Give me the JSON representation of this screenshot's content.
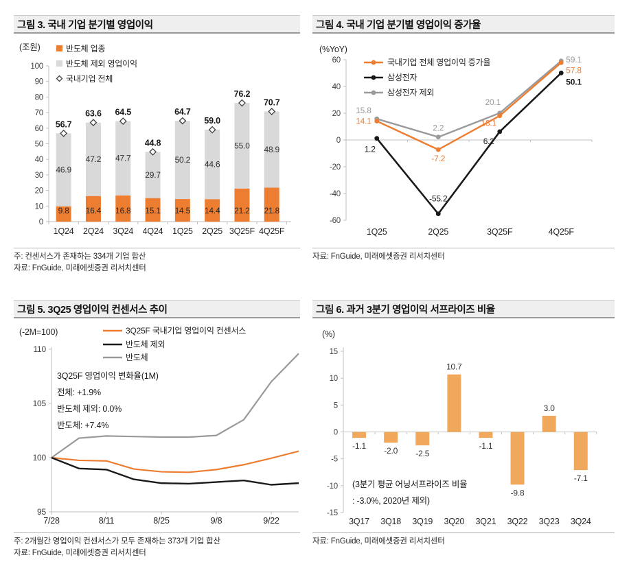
{
  "colors": {
    "orange": "#ED7D31",
    "light_orange": "#F0A95C",
    "gray_bar": "#D9D9D9",
    "gray_line": "#9A9A9A",
    "black": "#1A1A1A",
    "axis": "#BFBFBF",
    "label": "#404040",
    "title_bg": "#EFEFEF"
  },
  "chart_data": [
    {
      "id": "fig3",
      "type": "bar",
      "title": "그림 3. 국내 기업 분기별 영업이익",
      "unit_label": "(조원)",
      "categories": [
        "1Q24",
        "2Q24",
        "3Q24",
        "4Q24",
        "1Q25",
        "2Q25",
        "3Q25F",
        "4Q25F"
      ],
      "series": [
        {
          "name": "반도체 업종",
          "color_key": "orange",
          "values": [
            9.8,
            16.4,
            16.8,
            15.1,
            14.5,
            14.4,
            21.2,
            21.8
          ]
        },
        {
          "name": "반도체 제외 영업이익",
          "color_key": "gray_bar",
          "values": [
            46.9,
            47.2,
            47.7,
            29.7,
            50.2,
            44.6,
            55.0,
            48.9
          ]
        }
      ],
      "total_marker": {
        "name": "국내기업 전체",
        "values": [
          56.7,
          63.6,
          64.5,
          44.8,
          64.7,
          59.0,
          76.2,
          70.7
        ]
      },
      "ylim": [
        0,
        100
      ],
      "ytick_step": 10,
      "grid": false,
      "legend_position": "top-left",
      "note": "주: 컨센서스가 존재하는 334개 기업 합산",
      "source": "자료: FnGuide, 미래에셋증권 리서치센터"
    },
    {
      "id": "fig4",
      "type": "line",
      "title": "그림 4. 국내 기업 분기별 영업이익 증가율",
      "unit_label": "(%YoY)",
      "categories": [
        "1Q25",
        "2Q25",
        "3Q25F",
        "4Q25F"
      ],
      "series": [
        {
          "name": "국내기업 전체 영업이익 증가율",
          "color_key": "orange",
          "values": [
            14.1,
            -7.2,
            18.1,
            57.8
          ]
        },
        {
          "name": "삼성전자",
          "color_key": "black",
          "values": [
            1.2,
            -55.2,
            6.2,
            50.1
          ]
        },
        {
          "name": "삼성전자 제외",
          "color_key": "gray_line",
          "values": [
            15.8,
            2.2,
            20.1,
            59.1
          ]
        }
      ],
      "ylim": [
        -60,
        60
      ],
      "ytick_step": 20,
      "grid": false,
      "legend_position": "top-left",
      "source": "자료: FnGuide, 미래에셋증권 리서치센터"
    },
    {
      "id": "fig5",
      "type": "line",
      "title": "그림 5. 3Q25 영업이익 컨센서스 추이",
      "unit_label": "(-2M=100)",
      "x": [
        "7/28",
        "8/4",
        "8/11",
        "8/18",
        "8/25",
        "9/1",
        "9/8",
        "9/15",
        "9/22",
        "9/29"
      ],
      "x_tick_labels": [
        "7/28",
        "8/11",
        "8/25",
        "9/8",
        "9/22"
      ],
      "series": [
        {
          "name": "3Q25F 국내기업 영업이익 컨센서스",
          "color_key": "orange",
          "values": [
            100,
            99.75,
            99.7,
            98.95,
            98.7,
            98.65,
            98.9,
            99.35,
            99.95,
            100.6
          ]
        },
        {
          "name": "반도체 제외",
          "color_key": "black",
          "values": [
            100,
            99.0,
            98.9,
            98.0,
            97.65,
            97.6,
            97.75,
            97.9,
            97.5,
            97.65
          ]
        },
        {
          "name": "반도체",
          "color_key": "gray_line",
          "values": [
            100,
            101.8,
            102.0,
            101.95,
            101.9,
            101.9,
            102.05,
            103.5,
            107.0,
            109.6
          ]
        }
      ],
      "ylim": [
        95,
        110
      ],
      "ytick_step": 5,
      "grid": false,
      "legend_position": "top",
      "annotation": [
        "3Q25F 영업이익 변화율(1M)",
        "전체: +1.9%",
        "반도체 제외: 0.0%",
        "반도체: +7.4%"
      ],
      "note": "주: 2개월간 영업이익 컨센서스가 모두 존재하는 373개 기업 합산",
      "source": "자료: FnGuide, 미래에셋증권 리서치센터"
    },
    {
      "id": "fig6",
      "type": "bar",
      "title": "그림 6. 과거 3분기 영업이익 서프라이즈 비율",
      "unit_label": "(%)",
      "categories": [
        "3Q17",
        "3Q18",
        "3Q19",
        "3Q20",
        "3Q21",
        "3Q22",
        "3Q23",
        "3Q24"
      ],
      "values": [
        -1.1,
        -2.0,
        -2.5,
        10.7,
        -1.1,
        -9.8,
        3.0,
        -7.1
      ],
      "ylim": [
        -15,
        15
      ],
      "ytick_step": 5,
      "grid": false,
      "annotation": [
        "(3분기 평균 어닝서프라이즈 비율",
        ": -3.0%, 2020년 제외)"
      ],
      "source": "자료: FnGuide, 미래에셋증권 리서치센터"
    }
  ]
}
